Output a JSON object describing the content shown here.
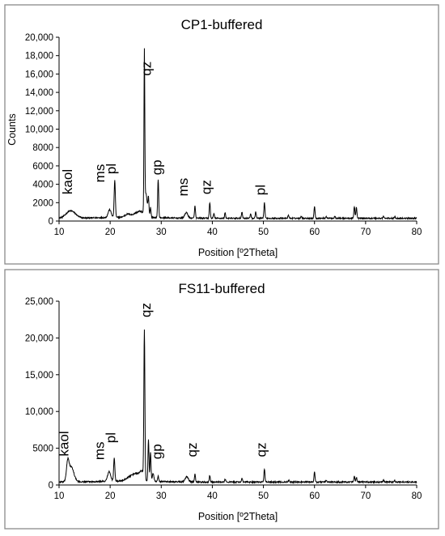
{
  "chart_data": [
    {
      "type": "line",
      "title": "CP1-buffered",
      "xlabel": "Position [º2Theta]",
      "ylabel": "Counts",
      "xlim": [
        10,
        80
      ],
      "ylim": [
        0,
        20000
      ],
      "xticks": [
        10,
        20,
        30,
        40,
        50,
        60,
        70,
        80
      ],
      "yticks": [
        0,
        2000,
        4000,
        6000,
        8000,
        10000,
        12000,
        14000,
        16000,
        18000,
        20000
      ],
      "ytick_labels": [
        "0",
        "2000",
        "4000",
        "6000",
        "8000",
        "10,000",
        "12,000",
        "14,000",
        "16,000",
        "18,000",
        "20,000"
      ],
      "grid": false,
      "background": 300,
      "peaks": [
        {
          "x": 12.3,
          "y": 1100,
          "w": 0.9
        },
        {
          "x": 19.9,
          "y": 1150,
          "w": 0.3
        },
        {
          "x": 20.9,
          "y": 4300,
          "w": 0.12
        },
        {
          "x": 23.5,
          "y": 650,
          "w": 0.6
        },
        {
          "x": 25.0,
          "y": 700,
          "w": 0.5
        },
        {
          "x": 26.0,
          "y": 900,
          "w": 0.5
        },
        {
          "x": 26.7,
          "y": 17200,
          "w": 0.08
        },
        {
          "x": 27.0,
          "y": 2800,
          "w": 0.25
        },
        {
          "x": 27.5,
          "y": 2300,
          "w": 0.1
        },
        {
          "x": 27.9,
          "y": 1400,
          "w": 0.1
        },
        {
          "x": 29.4,
          "y": 4500,
          "w": 0.1
        },
        {
          "x": 34.9,
          "y": 900,
          "w": 0.3
        },
        {
          "x": 36.6,
          "y": 1600,
          "w": 0.1
        },
        {
          "x": 39.5,
          "y": 2000,
          "w": 0.1
        },
        {
          "x": 40.3,
          "y": 800,
          "w": 0.1
        },
        {
          "x": 42.5,
          "y": 900,
          "w": 0.1
        },
        {
          "x": 45.8,
          "y": 1000,
          "w": 0.1
        },
        {
          "x": 47.5,
          "y": 800,
          "w": 0.1
        },
        {
          "x": 48.5,
          "y": 1000,
          "w": 0.1
        },
        {
          "x": 50.2,
          "y": 2000,
          "w": 0.1
        },
        {
          "x": 54.9,
          "y": 650,
          "w": 0.1
        },
        {
          "x": 57.4,
          "y": 550,
          "w": 0.1
        },
        {
          "x": 60.0,
          "y": 1600,
          "w": 0.1
        },
        {
          "x": 62.3,
          "y": 500,
          "w": 0.1
        },
        {
          "x": 64.0,
          "y": 550,
          "w": 0.1
        },
        {
          "x": 67.8,
          "y": 1600,
          "w": 0.1
        },
        {
          "x": 68.2,
          "y": 1500,
          "w": 0.1
        },
        {
          "x": 73.5,
          "y": 500,
          "w": 0.1
        },
        {
          "x": 75.7,
          "y": 500,
          "w": 0.1
        }
      ],
      "annotations": [
        {
          "text": "kaol",
          "x": 12.5,
          "y": 2900
        },
        {
          "text": "ms",
          "x": 18.9,
          "y": 4200
        },
        {
          "text": "pl",
          "x": 21.1,
          "y": 5100
        },
        {
          "text": "qz",
          "x": 28.0,
          "y": 15800
        },
        {
          "text": "gp",
          "x": 30.0,
          "y": 5000
        },
        {
          "text": "ms",
          "x": 35.2,
          "y": 2700
        },
        {
          "text": "qz",
          "x": 39.7,
          "y": 2900
        },
        {
          "text": "pl",
          "x": 50.3,
          "y": 2800
        }
      ]
    },
    {
      "type": "line",
      "title": "FS11-buffered",
      "xlabel": "Position [º2Theta]",
      "ylabel": "",
      "xlim": [
        10,
        80
      ],
      "ylim": [
        0,
        25000
      ],
      "xticks": [
        10,
        20,
        30,
        40,
        50,
        60,
        70,
        80
      ],
      "yticks": [
        0,
        5000,
        10000,
        15000,
        20000,
        25000
      ],
      "ytick_labels": [
        "0",
        "5000",
        "10,000",
        "15,000",
        "20,000",
        "25,000"
      ],
      "grid": false,
      "background": 400,
      "peaks": [
        {
          "x": 11.7,
          "y": 2800,
          "w": 0.25
        },
        {
          "x": 12.4,
          "y": 2400,
          "w": 0.5
        },
        {
          "x": 19.8,
          "y": 1700,
          "w": 0.3
        },
        {
          "x": 20.8,
          "y": 3500,
          "w": 0.12
        },
        {
          "x": 24.0,
          "y": 1000,
          "w": 0.8
        },
        {
          "x": 25.2,
          "y": 1200,
          "w": 0.6
        },
        {
          "x": 26.2,
          "y": 1600,
          "w": 0.4
        },
        {
          "x": 26.7,
          "y": 20500,
          "w": 0.1
        },
        {
          "x": 27.5,
          "y": 6000,
          "w": 0.1
        },
        {
          "x": 27.9,
          "y": 4300,
          "w": 0.1
        },
        {
          "x": 28.4,
          "y": 1500,
          "w": 0.15
        },
        {
          "x": 29.4,
          "y": 1100,
          "w": 0.1
        },
        {
          "x": 35.0,
          "y": 1100,
          "w": 0.3
        },
        {
          "x": 36.6,
          "y": 1500,
          "w": 0.1
        },
        {
          "x": 39.5,
          "y": 1300,
          "w": 0.1
        },
        {
          "x": 42.5,
          "y": 800,
          "w": 0.1
        },
        {
          "x": 45.8,
          "y": 900,
          "w": 0.1
        },
        {
          "x": 50.2,
          "y": 2200,
          "w": 0.1
        },
        {
          "x": 55.0,
          "y": 700,
          "w": 0.1
        },
        {
          "x": 60.0,
          "y": 1800,
          "w": 0.1
        },
        {
          "x": 62.3,
          "y": 600,
          "w": 0.1
        },
        {
          "x": 67.8,
          "y": 1100,
          "w": 0.1
        },
        {
          "x": 68.2,
          "y": 1000,
          "w": 0.1
        },
        {
          "x": 73.5,
          "y": 600,
          "w": 0.1
        },
        {
          "x": 75.7,
          "y": 600,
          "w": 0.1
        }
      ],
      "annotations": [
        {
          "text": "kaol",
          "x": 11.8,
          "y": 3900
        },
        {
          "text": "ms",
          "x": 18.8,
          "y": 3400
        },
        {
          "text": "pl",
          "x": 21.0,
          "y": 5700
        },
        {
          "text": "qz",
          "x": 27.9,
          "y": 22800
        },
        {
          "text": "gp",
          "x": 30.0,
          "y": 3500
        },
        {
          "text": "qz",
          "x": 36.9,
          "y": 3800
        },
        {
          "text": "qz",
          "x": 50.5,
          "y": 3800
        }
      ]
    }
  ]
}
